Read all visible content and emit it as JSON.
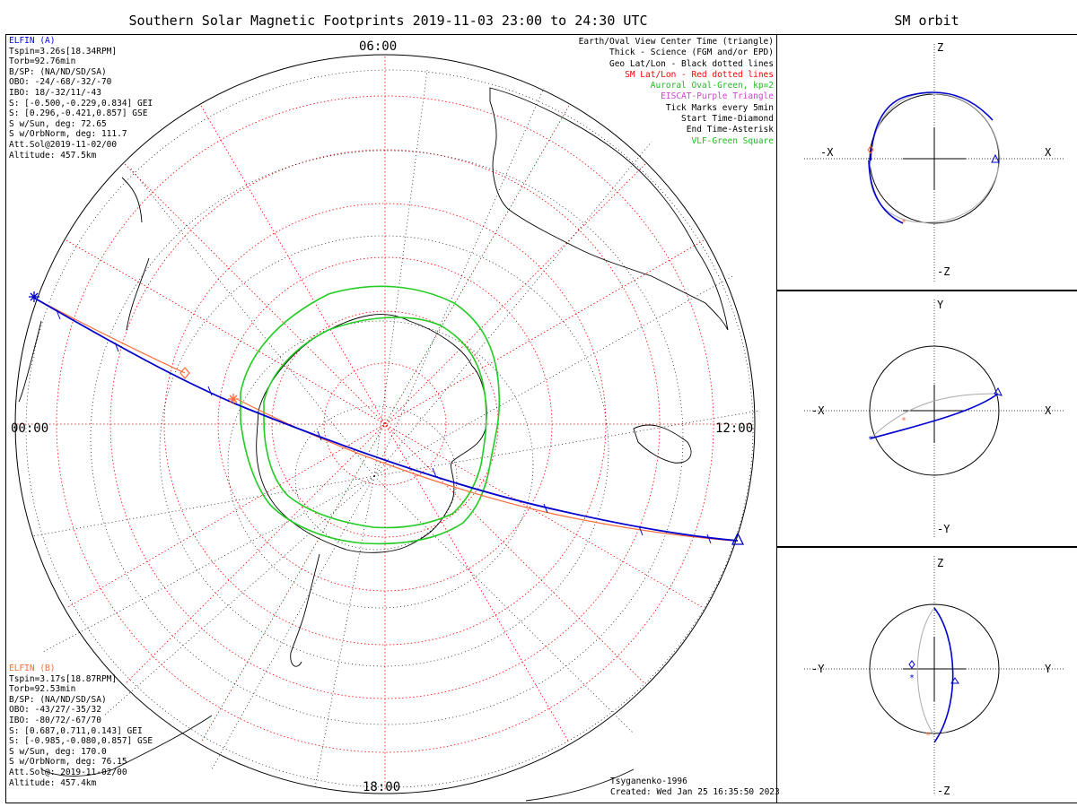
{
  "title": "Southern Solar Magnetic Footprints 2019-11-03 23:00 to 24:30 UTC",
  "sm_orbit_title": "SM orbit",
  "clock_labels": {
    "top": "06:00",
    "left": "00:00",
    "right": "12:00",
    "bottom": "18:00"
  },
  "elfin_a": {
    "name": "ELFIN (A)",
    "color": "#0000ff",
    "lines": [
      "Tspin=3.26s[18.34RPM]",
      "Torb=92.76min",
      "B/SP: (NA/ND/SD/SA)",
      "OBO: -24/-68/-32/-70",
      "IBO: 18/-32/11/-43",
      "S: [-0.500,-0.229,0.834] GEI",
      "S: [0.296,-0.421,0.857] GSE",
      "S w/Sun, deg: 72.65",
      "S w/OrbNorm, deg: 111.7",
      "Att.Sol@2019-11-02/00",
      "Altitude: 457.5km"
    ]
  },
  "elfin_b": {
    "name": "ELFIN (B)",
    "color": "#ff6a3a",
    "lines": [
      "Tspin=3.17s[18.87RPM]",
      "Torb=92.53min",
      "B/SP: (NA/ND/SD/SA)",
      "OBO: -43/27/-35/32",
      "IBO: -80/72/-67/70",
      "S: [0.687,0.711,0.143] GEI",
      "S: [-0.985,-0.080,0.857] GSE",
      "S w/Sun, deg: 170.0",
      "S w/OrbNorm, deg: 76.15",
      "Att.Sol@: 2019-11-02/00",
      "Altitude: 457.4km"
    ]
  },
  "legend": [
    {
      "text": "Earth/Oval View Center Time (triangle)",
      "color": "#000000"
    },
    {
      "text": "Thick - Science (FGM and/or EPD)",
      "color": "#000000"
    },
    {
      "text": "Geo Lat/Lon - Black dotted lines",
      "color": "#000000"
    },
    {
      "text": "SM Lat/Lon - Red dotted lines",
      "color": "#ff0000"
    },
    {
      "text": "Auroral Oval-Green, kp=2",
      "color": "#22bb22"
    },
    {
      "text": "EISCAT-Purple Triangle",
      "color": "#cc44cc"
    },
    {
      "text": "Tick Marks every 5min",
      "color": "#000000"
    },
    {
      "text": "Start Time-Diamond",
      "color": "#000000"
    },
    {
      "text": "End Time-Asterisk",
      "color": "#000000"
    },
    {
      "text": "VLF-Green Square",
      "color": "#22bb22"
    }
  ],
  "footer": {
    "model": "Tsyganenko-1996",
    "created": "Created: Wed Jan 25 16:35:50 2023"
  },
  "sm_panels": [
    {
      "h_neg": "-X",
      "h_pos": "X",
      "v_pos": "Z",
      "v_neg": "-Z"
    },
    {
      "h_neg": "-X",
      "h_pos": "X",
      "v_pos": "Y",
      "v_neg": "-Y"
    },
    {
      "h_neg": "-Y",
      "h_pos": "Y",
      "v_pos": "Z",
      "v_neg": "-Z"
    }
  ],
  "colors": {
    "oval": "#22cc22",
    "sm_grid": "#ff0000",
    "elfin_a": "#0000cc",
    "elfin_b": "#ff6a3a",
    "orbit_gray": "#aaaaaa"
  }
}
